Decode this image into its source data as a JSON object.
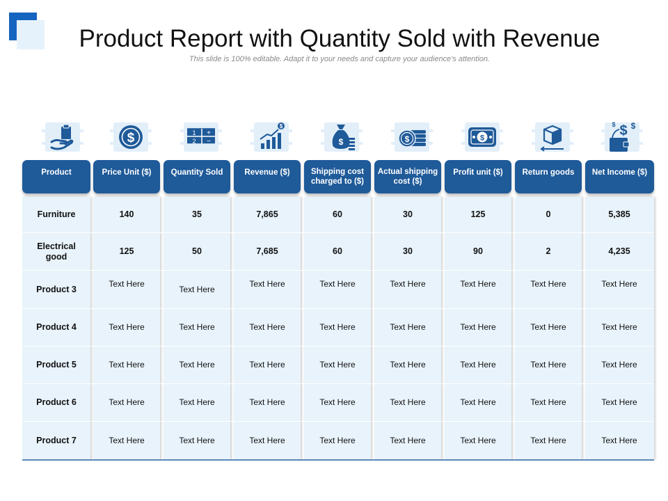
{
  "title": "Product Report with Quantity Sold with Revenue",
  "subtitle": "This slide is 100% editable. Adapt it to your needs and capture your audience's attention.",
  "colors": {
    "header": "#1f5a99",
    "accent": "#1565c0",
    "column": "#e8f3fb",
    "icon": "#1f5a99"
  },
  "icons": [
    "hand-clipboard-icon",
    "dollar-coin-icon",
    "calculator-icon",
    "growth-chart-icon",
    "money-bag-icon",
    "coin-stack-icon",
    "banknote-icon",
    "box-return-icon",
    "wallet-dollar-icon"
  ],
  "headers": [
    "Product",
    "Price Unit ($)",
    "Quantity Sold",
    "Revenue ($)",
    "Shipping cost charged to ($)",
    "Actual shipping cost ($)",
    "Profit unit ($)",
    "Return goods",
    "Net Income ($)"
  ],
  "rows": [
    [
      "Furniture",
      "140",
      "35",
      "7,865",
      "60",
      "30",
      "125",
      "0",
      "5,385"
    ],
    [
      "Electrical good",
      "125",
      "50",
      "7,685",
      "60",
      "30",
      "90",
      "2",
      "4,235"
    ],
    [
      "Product 3",
      "Text Here",
      "Text Here",
      "Text Here",
      "Text Here",
      "Text Here",
      "Text Here",
      "Text Here",
      "Text Here"
    ],
    [
      "Product 4",
      "Text Here",
      "Text Here",
      "Text Here",
      "Text Here",
      "Text Here",
      "Text Here",
      "Text Here",
      "Text Here"
    ],
    [
      "Product 5",
      "Text Here",
      "Text Here",
      "Text Here",
      "Text Here",
      "Text Here",
      "Text Here",
      "Text Here",
      "Text Here"
    ],
    [
      "Product 6",
      "Text Here",
      "Text Here",
      "Text Here",
      "Text Here",
      "Text Here",
      "Text Here",
      "Text Here",
      "Text Here"
    ],
    [
      "Product 7",
      "Text Here",
      "Text Here",
      "Text Here",
      "Text Here",
      "Text Here",
      "Text Here",
      "Text Here",
      "Text Here"
    ]
  ]
}
